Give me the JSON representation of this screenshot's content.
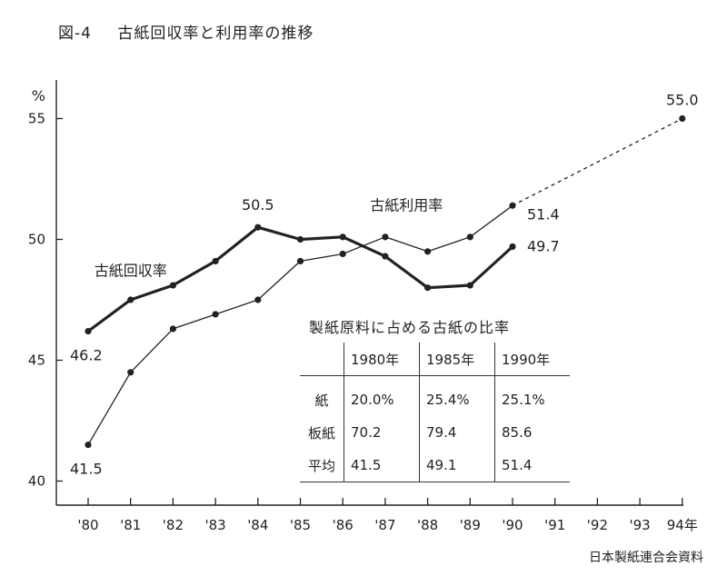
{
  "figure": {
    "number": "図-4",
    "title": "古紙回収率と利用率の推移"
  },
  "source": "日本製紙連合会資料",
  "chart_data": {
    "type": "line",
    "x_ticks": [
      "'80",
      "'81",
      "'82",
      "'83",
      "'84",
      "'85",
      "'86",
      "'87",
      "'88",
      "'89",
      "'90",
      "'91",
      "'92",
      "'93",
      "94年"
    ],
    "y_unit": "%",
    "y_ticks": [
      40,
      45,
      50,
      55
    ],
    "ylim": [
      39.5,
      57
    ],
    "series": [
      {
        "name": "古紙回収率",
        "style": "thick",
        "x": [
          1980,
          1981,
          1982,
          1983,
          1984,
          1985,
          1986,
          1987,
          1988,
          1989,
          1990
        ],
        "values": [
          46.2,
          47.5,
          48.1,
          49.1,
          50.5,
          50.0,
          50.1,
          49.3,
          48.0,
          48.1,
          49.7
        ]
      },
      {
        "name": "古紙利用率",
        "style": "thin",
        "x": [
          1980,
          1981,
          1982,
          1983,
          1984,
          1985,
          1986,
          1987,
          1988,
          1989,
          1990
        ],
        "values": [
          41.5,
          44.5,
          46.3,
          46.9,
          47.5,
          49.1,
          49.4,
          50.1,
          49.5,
          50.1,
          51.4
        ],
        "projection": {
          "x": [
            1990,
            1994
          ],
          "values": [
            51.4,
            55.0
          ],
          "style": "dashed"
        }
      }
    ],
    "annotations": [
      {
        "text": "46.2",
        "x": 1980,
        "y": 46.2
      },
      {
        "text": "41.5",
        "x": 1980,
        "y": 41.5
      },
      {
        "text": "50.5",
        "x": 1984,
        "y": 50.5
      },
      {
        "text": "51.4",
        "x": 1990,
        "y": 51.4
      },
      {
        "text": "49.7",
        "x": 1990,
        "y": 49.7
      },
      {
        "text": "55.0",
        "x": 1994,
        "y": 55.0
      }
    ],
    "series_labels": [
      {
        "text": "古紙回収率",
        "x": 1981,
        "y": 48.5
      },
      {
        "text": "古紙利用率",
        "x": 1987.5,
        "y": 51.2
      }
    ]
  },
  "inset_table": {
    "title": "製紙原料に占める古紙の比率",
    "columns": [
      "1980年",
      "1985年",
      "1990年"
    ],
    "rows": [
      {
        "label": "紙",
        "values": [
          "20.0%",
          "25.4%",
          "25.1%"
        ]
      },
      {
        "label": "板紙",
        "values": [
          "70.2",
          "79.4",
          "85.6"
        ]
      },
      {
        "label": "平均",
        "values": [
          "41.5",
          "49.1",
          "51.4"
        ]
      }
    ]
  }
}
